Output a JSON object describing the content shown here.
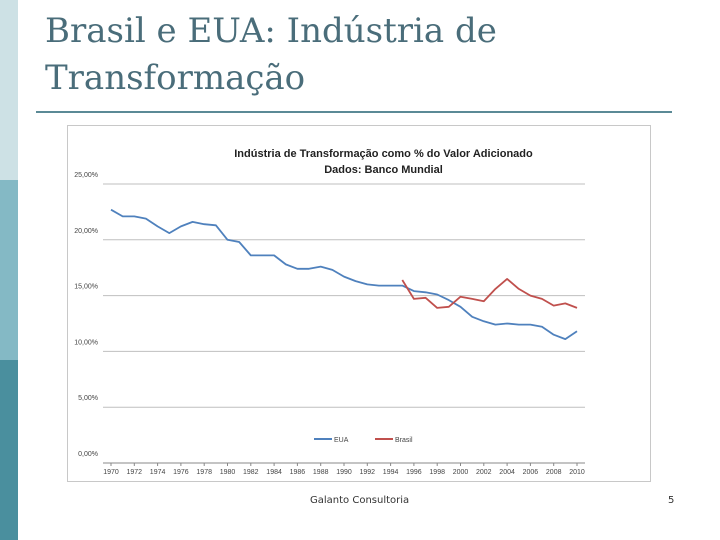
{
  "slide": {
    "title_line1": "Brasil e EUA: Indústria de",
    "title_line2": "Transformação",
    "footer": "Galanto Consultoria",
    "page_number": "5"
  },
  "chart_data": {
    "type": "line",
    "title_line1": "Indústria de Transformação como % do Valor Adicionado",
    "title_line2": "Dados: Banco Mundial",
    "xlabel": "",
    "ylabel": "",
    "ylim": [
      0,
      25
    ],
    "y_ticks": [
      "0,00%",
      "5,00%",
      "10,00%",
      "15,00%",
      "20,00%",
      "25,00%"
    ],
    "y_tick_values": [
      0,
      5,
      10,
      15,
      20,
      25
    ],
    "x_tick_labels": [
      "1970",
      "1972",
      "1974",
      "1976",
      "1978",
      "1980",
      "1982",
      "1984",
      "1986",
      "1988",
      "1990",
      "1992",
      "1994",
      "1996",
      "1998",
      "2000",
      "2002",
      "2004",
      "2006",
      "2008",
      "2010"
    ],
    "grid": true,
    "legend_position": "bottom",
    "series": [
      {
        "name": "EUA",
        "color": "#4f81bd",
        "x": [
          1970,
          1971,
          1972,
          1973,
          1974,
          1975,
          1976,
          1977,
          1978,
          1979,
          1980,
          1981,
          1982,
          1983,
          1984,
          1985,
          1986,
          1987,
          1988,
          1989,
          1990,
          1991,
          1992,
          1993,
          1994,
          1995,
          1996,
          1997,
          1998,
          1999,
          2000,
          2001,
          2002,
          2003,
          2004,
          2005,
          2006,
          2007,
          2008,
          2009,
          2010
        ],
        "values": [
          22.7,
          22.1,
          22.1,
          21.9,
          21.2,
          20.6,
          21.2,
          21.6,
          21.4,
          21.3,
          20.0,
          19.8,
          18.6,
          18.6,
          18.6,
          17.8,
          17.4,
          17.4,
          17.6,
          17.3,
          16.7,
          16.3,
          16.0,
          15.9,
          15.9,
          15.9,
          15.4,
          15.3,
          15.1,
          14.6,
          14.0,
          13.1,
          12.7,
          12.4,
          12.5,
          12.4,
          12.4,
          12.2,
          11.5,
          11.1,
          11.8
        ]
      },
      {
        "name": "Brasil",
        "color": "#c0504d",
        "x": [
          1995,
          1996,
          1997,
          1998,
          1999,
          2000,
          2001,
          2002,
          2003,
          2004,
          2005,
          2006,
          2007,
          2008,
          2009,
          2010
        ],
        "values": [
          16.4,
          14.7,
          14.8,
          13.9,
          14.0,
          14.9,
          14.7,
          14.5,
          15.6,
          16.5,
          15.6,
          15.0,
          14.7,
          14.1,
          14.3,
          13.9
        ]
      }
    ]
  }
}
